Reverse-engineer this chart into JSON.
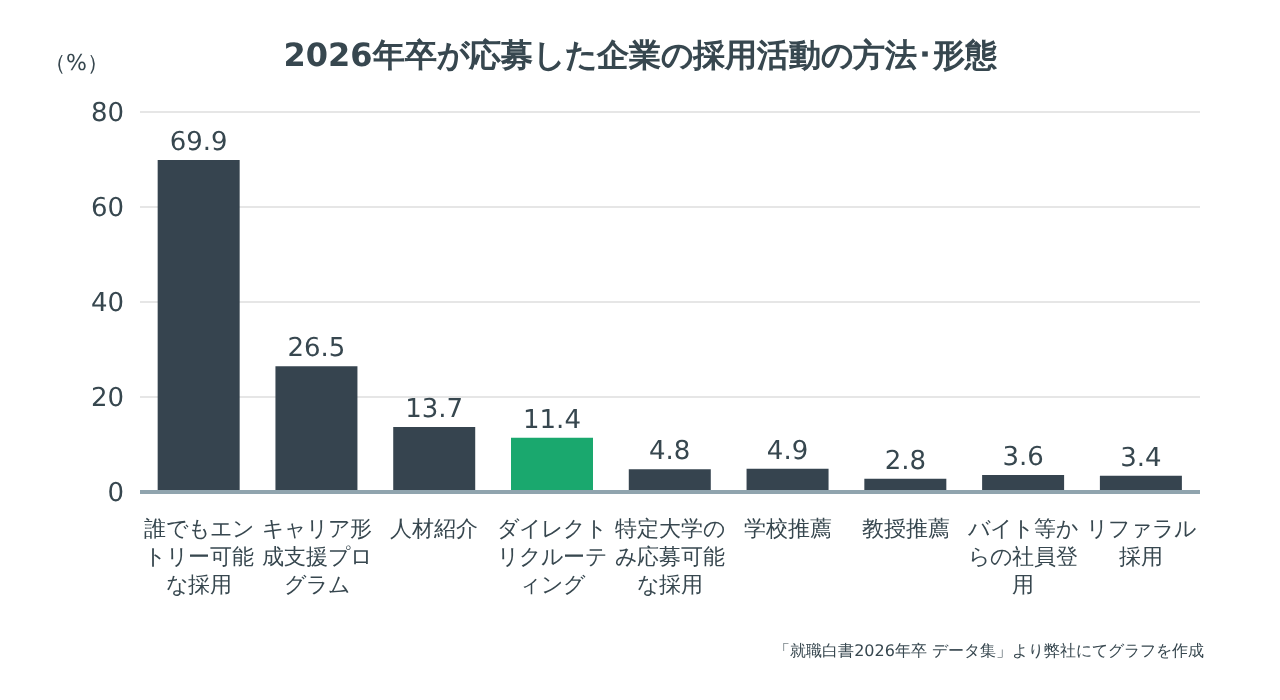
{
  "chart_data": {
    "type": "bar",
    "title": "2026年卒が応募した企業の採用活動の方法･形態",
    "ylabel": "（%）",
    "categories": [
      "誰でもエントリー可能な採用",
      "キャリア形成支援プログラム",
      "人材紹介",
      "ダイレクトリクルーティング",
      "特定大学のみ応募可能な採用",
      "学校推薦",
      "教授推薦",
      "バイト等からの社員登用",
      "リファラル採用"
    ],
    "values": [
      69.9,
      26.5,
      13.7,
      11.4,
      4.8,
      4.9,
      2.8,
      3.6,
      3.4
    ],
    "colors": [
      "#36444f",
      "#36444f",
      "#36444f",
      "#1aa86e",
      "#36444f",
      "#36444f",
      "#36444f",
      "#36444f",
      "#36444f"
    ],
    "ylim": [
      0,
      80
    ],
    "yticks": [
      0,
      20,
      40,
      60,
      80
    ],
    "grid": "y",
    "data_labels": true,
    "annotations": [
      "「就職白書2026年卒 データ集」より弊社にてグラフを作成"
    ]
  }
}
